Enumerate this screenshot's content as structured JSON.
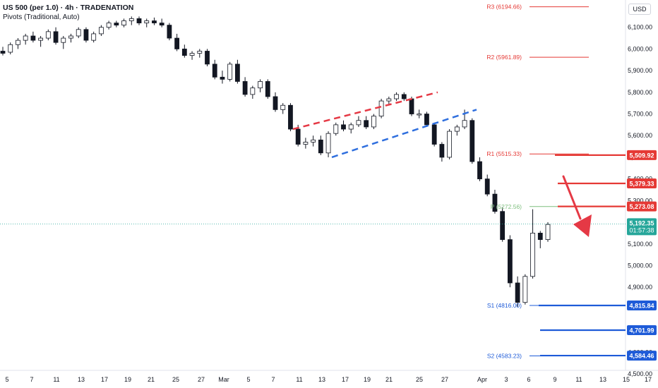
{
  "header": {
    "title": "US 500 (per 1.0) · 4h · TRADENATION",
    "indicator": "Pivots (Traditional, Auto)"
  },
  "currency": "USD",
  "colors": {
    "up": "#131722",
    "down": "#131722",
    "wick": "#131722",
    "resistance": "#e53935",
    "support": "#1e5bd8",
    "pivot": "#7fbf7f",
    "channel_red": "#e53945",
    "channel_blue": "#2f6fde",
    "arrow": "#e53945",
    "current": "#26a69a"
  },
  "chart_data": {
    "type": "candlestick",
    "symbol": "US 500",
    "timeframe": "4h",
    "y_axis": {
      "min": 4500,
      "max": 6200,
      "ticks": [
        6100,
        6000,
        5900,
        5800,
        5700,
        5600,
        5500,
        5400,
        5300,
        5100,
        5000,
        4900,
        4600,
        4500
      ],
      "tick_labels": [
        "6,100.00",
        "6,000.00",
        "5,900.00",
        "5,800.00",
        "5,700.00",
        "5,600.00",
        "5,500.00",
        "5,400.00",
        "5,300.00",
        "5,100.00",
        "5,000.00",
        "4,900.00",
        "4,600.00",
        "4,500.00"
      ]
    },
    "x_axis": {
      "labels": [
        "5",
        "7",
        "11",
        "13",
        "17",
        "19",
        "21",
        "25",
        "27",
        "Mar",
        "5",
        "7",
        "11",
        "13",
        "17",
        "19",
        "21",
        "25",
        "27",
        "Apr",
        "3",
        "6",
        "9",
        "11",
        "13",
        "15",
        "17"
      ]
    },
    "close_path": [
      [
        0,
        6000
      ],
      [
        2,
        6020
      ],
      [
        4,
        6060
      ],
      [
        5,
        6040
      ],
      [
        7,
        6080
      ],
      [
        8,
        6030
      ],
      [
        10,
        6050
      ],
      [
        12,
        6090
      ],
      [
        13,
        6040
      ],
      [
        15,
        6100
      ],
      [
        17,
        6120
      ],
      [
        19,
        6110
      ],
      [
        21,
        6140
      ],
      [
        23,
        6120
      ],
      [
        25,
        6130
      ],
      [
        27,
        6110
      ],
      [
        28,
        6050
      ],
      [
        30,
        6000
      ],
      [
        32,
        5970
      ],
      [
        34,
        5980
      ],
      [
        36,
        5990
      ],
      [
        37,
        5930
      ],
      [
        38,
        5870
      ],
      [
        40,
        5860
      ],
      [
        42,
        5930
      ],
      [
        43,
        5850
      ],
      [
        45,
        5790
      ],
      [
        47,
        5820
      ],
      [
        49,
        5850
      ],
      [
        51,
        5780
      ],
      [
        53,
        5720
      ],
      [
        55,
        5740
      ],
      [
        56,
        5630
      ],
      [
        58,
        5560
      ],
      [
        60,
        5570
      ],
      [
        62,
        5580
      ],
      [
        64,
        5520
      ],
      [
        66,
        5610
      ],
      [
        68,
        5650
      ],
      [
        70,
        5630
      ],
      [
        72,
        5650
      ],
      [
        74,
        5670
      ],
      [
        76,
        5640
      ],
      [
        78,
        5690
      ],
      [
        80,
        5760
      ],
      [
        82,
        5770
      ],
      [
        84,
        5790
      ],
      [
        86,
        5770
      ],
      [
        88,
        5700
      ],
      [
        90,
        5700
      ],
      [
        91,
        5650
      ],
      [
        92,
        5560
      ],
      [
        94,
        5500
      ],
      [
        96,
        5620
      ],
      [
        98,
        5640
      ],
      [
        99,
        5670
      ],
      [
        100,
        5480
      ],
      [
        101,
        5400
      ],
      [
        102,
        5330
      ],
      [
        103,
        5250
      ],
      [
        104,
        5120
      ],
      [
        105,
        4920
      ],
      [
        106,
        4830
      ],
      [
        107,
        4950
      ],
      [
        108,
        5150
      ],
      [
        110,
        5120
      ],
      [
        111,
        5170
      ]
    ],
    "candles": [
      [
        5990,
        6010,
        5970,
        5980
      ],
      [
        5985,
        6030,
        5975,
        6020
      ],
      [
        6020,
        6050,
        6000,
        6040
      ],
      [
        6040,
        6070,
        6020,
        6060
      ],
      [
        6060,
        6080,
        6030,
        6040
      ],
      [
        6040,
        6060,
        6010,
        6050
      ],
      [
        6050,
        6090,
        6040,
        6080
      ],
      [
        6080,
        6100,
        6020,
        6030
      ],
      [
        6030,
        6060,
        6000,
        6050
      ],
      [
        6050,
        6070,
        6030,
        6060
      ],
      [
        6060,
        6100,
        6050,
        6090
      ],
      [
        6090,
        6100,
        6030,
        6040
      ],
      [
        6040,
        6080,
        6030,
        6070
      ],
      [
        6070,
        6110,
        6060,
        6100
      ],
      [
        6100,
        6130,
        6090,
        6120
      ],
      [
        6120,
        6130,
        6100,
        6110
      ],
      [
        6110,
        6140,
        6100,
        6130
      ],
      [
        6130,
        6150,
        6110,
        6140
      ],
      [
        6140,
        6150,
        6110,
        6120
      ],
      [
        6120,
        6140,
        6100,
        6130
      ],
      [
        6130,
        6145,
        6110,
        6120
      ],
      [
        6120,
        6140,
        6100,
        6110
      ],
      [
        6110,
        6120,
        6040,
        6050
      ],
      [
        6050,
        6070,
        5990,
        6000
      ],
      [
        6000,
        6020,
        5960,
        5970
      ],
      [
        5970,
        5990,
        5950,
        5980
      ],
      [
        5980,
        6000,
        5960,
        5990
      ],
      [
        5990,
        6000,
        5920,
        5930
      ],
      [
        5930,
        5950,
        5860,
        5870
      ],
      [
        5870,
        5900,
        5840,
        5860
      ],
      [
        5860,
        5940,
        5850,
        5930
      ],
      [
        5930,
        5950,
        5840,
        5850
      ],
      [
        5850,
        5870,
        5780,
        5790
      ],
      [
        5790,
        5830,
        5770,
        5820
      ],
      [
        5820,
        5860,
        5800,
        5850
      ],
      [
        5850,
        5860,
        5770,
        5780
      ],
      [
        5780,
        5800,
        5710,
        5720
      ],
      [
        5720,
        5750,
        5700,
        5740
      ],
      [
        5740,
        5750,
        5620,
        5630
      ],
      [
        5630,
        5650,
        5550,
        5560
      ],
      [
        5560,
        5590,
        5540,
        5570
      ],
      [
        5570,
        5600,
        5550,
        5580
      ],
      [
        5580,
        5600,
        5510,
        5520
      ],
      [
        5520,
        5620,
        5500,
        5610
      ],
      [
        5610,
        5660,
        5600,
        5650
      ],
      [
        5650,
        5670,
        5620,
        5630
      ],
      [
        5630,
        5660,
        5610,
        5650
      ],
      [
        5650,
        5690,
        5640,
        5670
      ],
      [
        5670,
        5690,
        5630,
        5640
      ],
      [
        5640,
        5700,
        5630,
        5690
      ],
      [
        5690,
        5770,
        5680,
        5760
      ],
      [
        5760,
        5780,
        5740,
        5770
      ],
      [
        5770,
        5800,
        5760,
        5790
      ],
      [
        5790,
        5800,
        5760,
        5770
      ],
      [
        5770,
        5780,
        5690,
        5700
      ],
      [
        5700,
        5720,
        5680,
        5700
      ],
      [
        5700,
        5710,
        5640,
        5650
      ],
      [
        5650,
        5660,
        5550,
        5560
      ],
      [
        5560,
        5570,
        5480,
        5500
      ],
      [
        5500,
        5630,
        5490,
        5620
      ],
      [
        5620,
        5650,
        5600,
        5640
      ],
      [
        5640,
        5720,
        5630,
        5670
      ],
      [
        5670,
        5680,
        5470,
        5480
      ],
      [
        5480,
        5500,
        5390,
        5400
      ],
      [
        5400,
        5420,
        5320,
        5330
      ],
      [
        5330,
        5350,
        5240,
        5250
      ],
      [
        5250,
        5270,
        5110,
        5120
      ],
      [
        5120,
        5140,
        4900,
        4920
      ],
      [
        4920,
        4950,
        4810,
        4830
      ],
      [
        4830,
        4960,
        4820,
        4950
      ],
      [
        4950,
        5260,
        4940,
        5150
      ],
      [
        5150,
        5160,
        5080,
        5120
      ],
      [
        5120,
        5200,
        5110,
        5190
      ]
    ],
    "pivots": [
      {
        "name": "R3",
        "label": "R3 (6194.66)",
        "value": 6194.66
      },
      {
        "name": "R2",
        "label": "R2 (5961.89)",
        "value": 5961.89
      },
      {
        "name": "R1",
        "label": "R1 (5515.33)",
        "value": 5515.33
      },
      {
        "name": "P",
        "label": "P (5272.56)",
        "value": 5272.56
      },
      {
        "name": "S1",
        "label": "S1 (4816.00)",
        "value": 4816.0
      },
      {
        "name": "S2",
        "label": "S2 (4583.23)",
        "value": 4583.23
      }
    ],
    "levels": [
      {
        "value": 5509.92,
        "label": "5,509.92",
        "type": "resistance"
      },
      {
        "value": 5379.33,
        "label": "5,379.33",
        "type": "resistance"
      },
      {
        "value": 5273.08,
        "label": "5,273.08",
        "type": "resistance"
      },
      {
        "value": 4815.84,
        "label": "4,815.84",
        "type": "support"
      },
      {
        "value": 4701.99,
        "label": "4,701.99",
        "type": "support"
      },
      {
        "value": 4584.46,
        "label": "4,584.46",
        "type": "support"
      }
    ],
    "current_price": {
      "value": 5192.35,
      "label": "5,192.35",
      "countdown": "01:57:38"
    },
    "channel": {
      "upper": [
        [
          5630,
          5800
        ]
      ],
      "lower": [
        [
          5500,
          5720
        ]
      ]
    }
  }
}
